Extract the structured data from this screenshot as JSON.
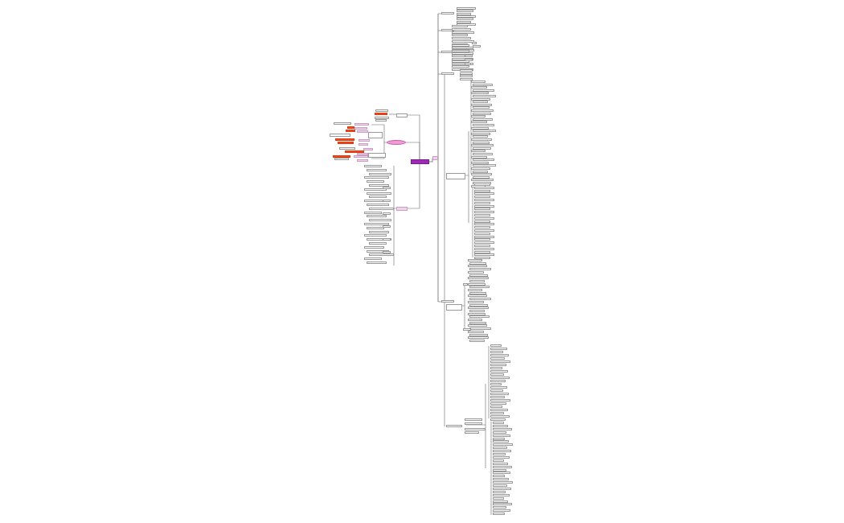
{
  "mindmap": {
    "central_topic": "",
    "colors": {
      "central": "#9b2bb0",
      "highlight": "#f04a1c",
      "sub": "#f0d4ec",
      "ellipse": "#f49ad8",
      "line": "#555555"
    }
  }
}
